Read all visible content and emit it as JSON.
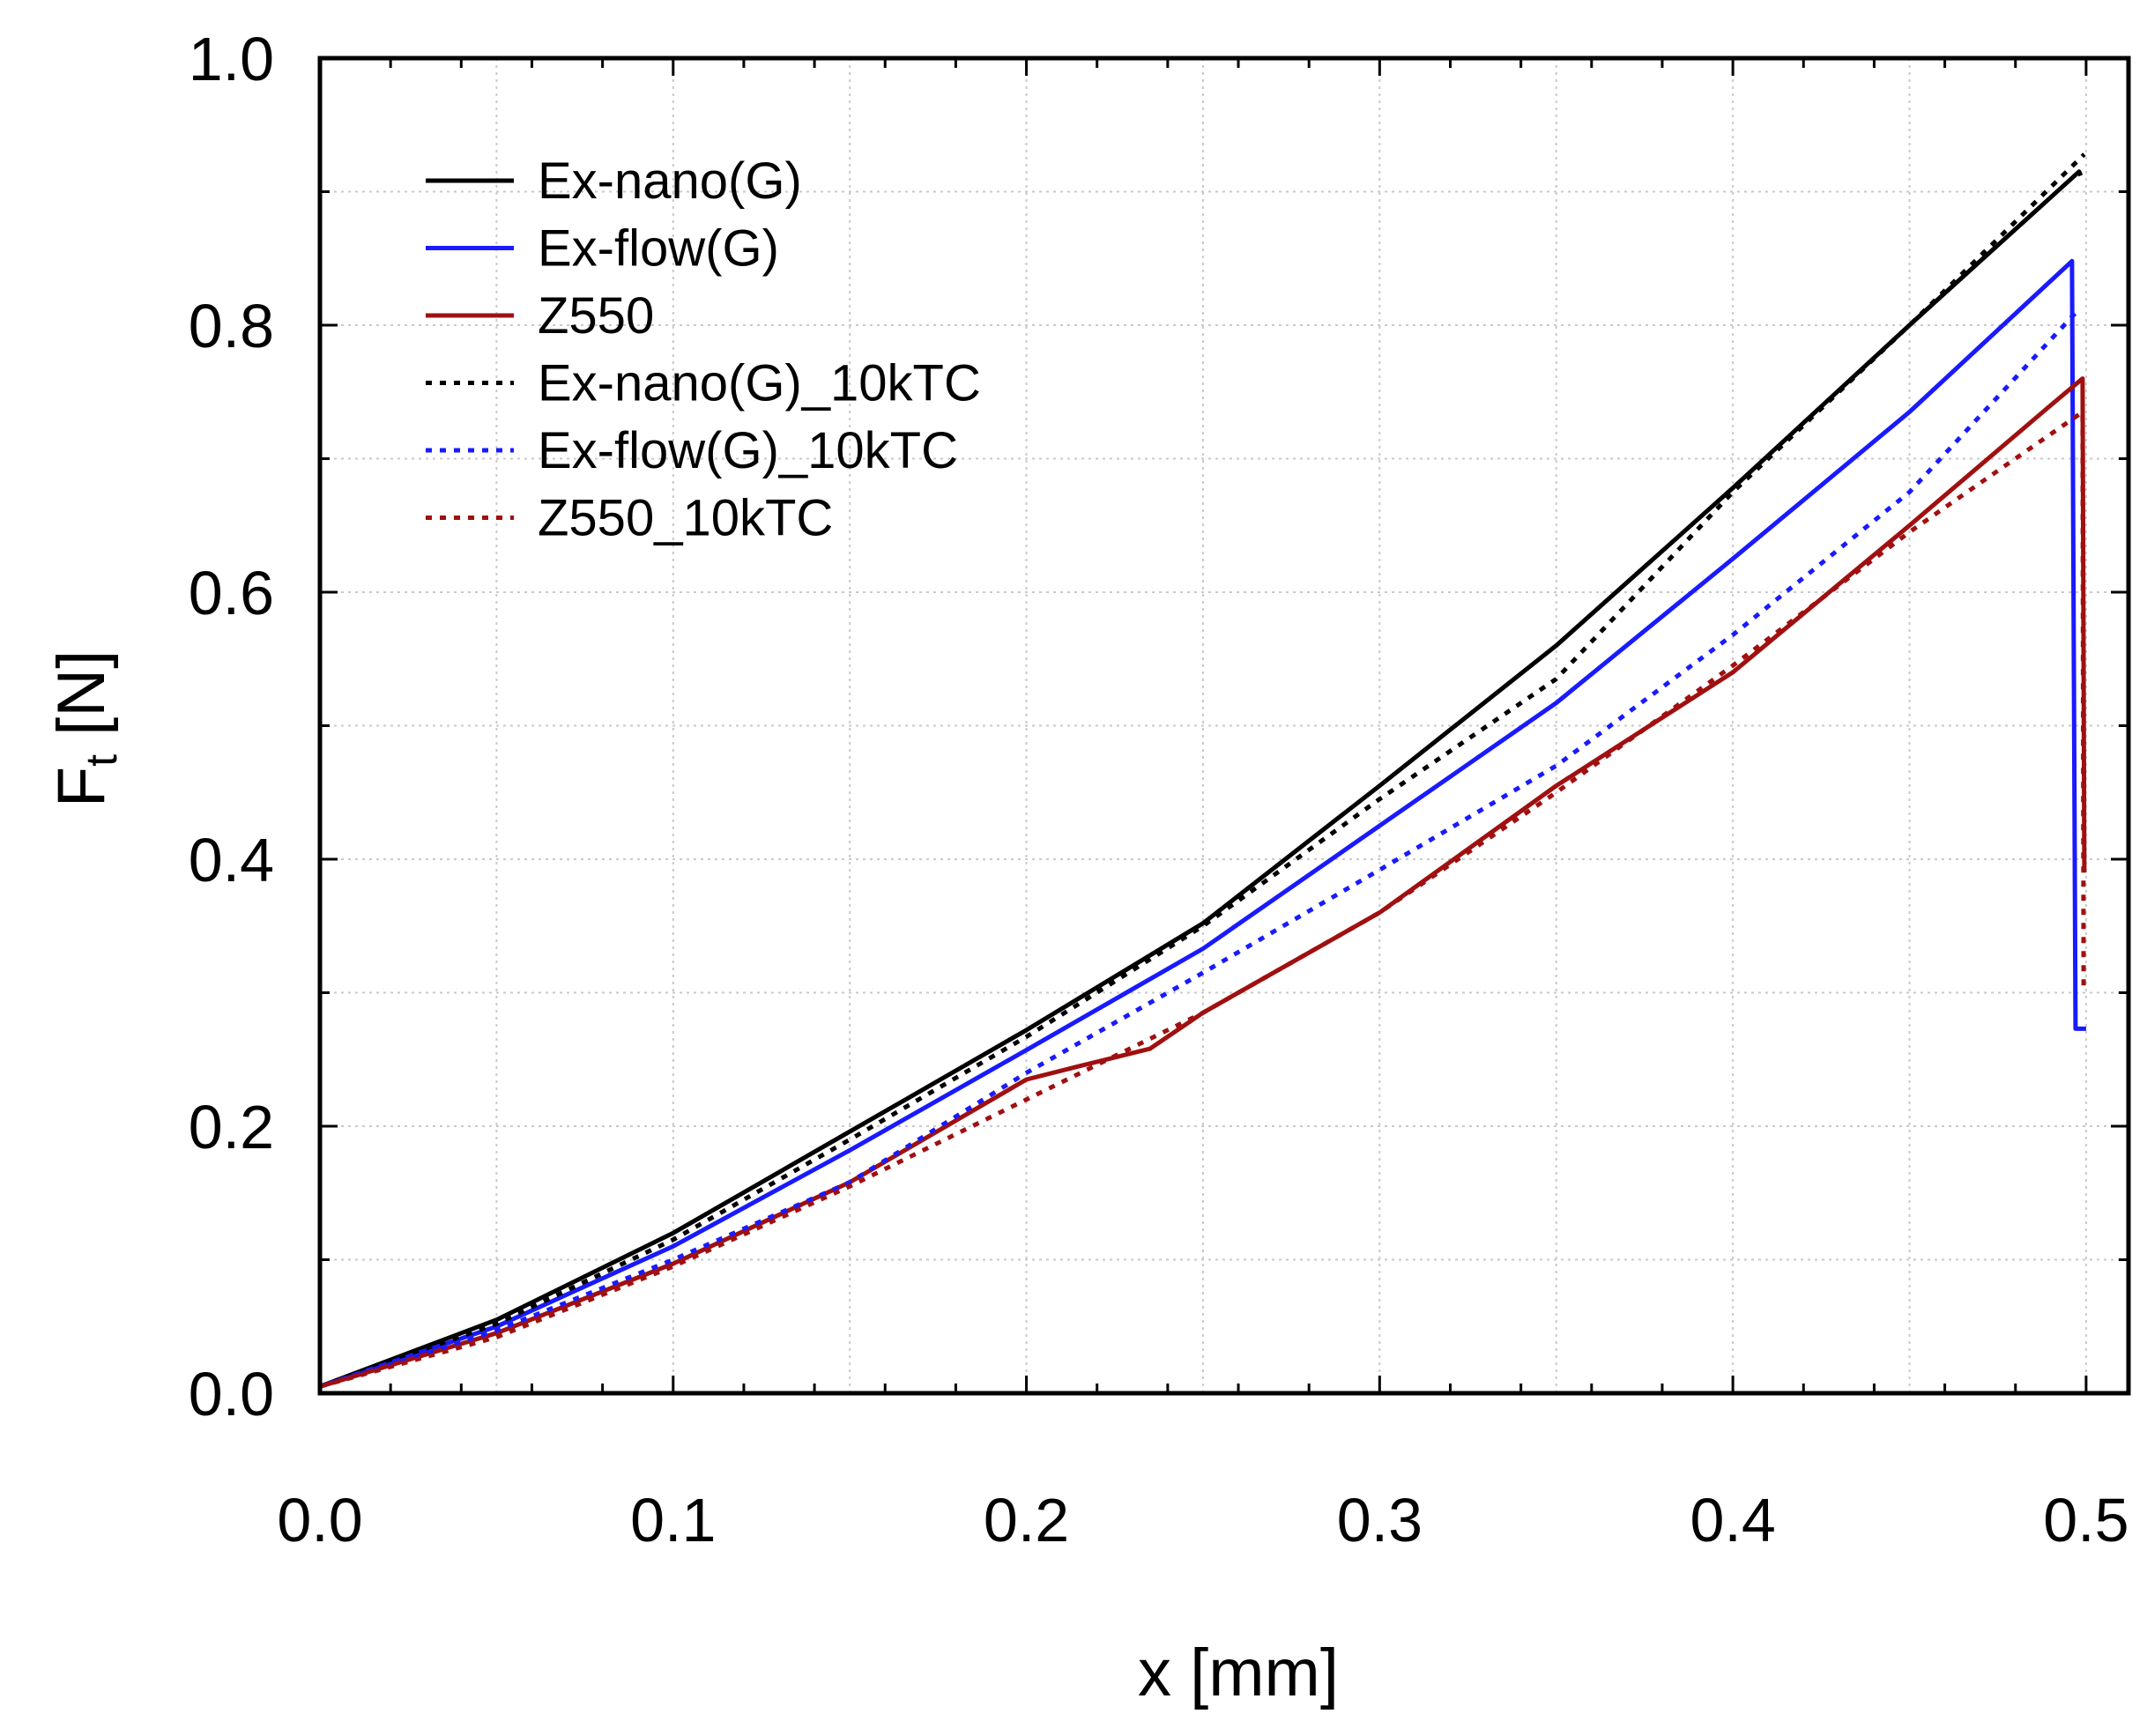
{
  "chart_data": {
    "type": "line",
    "title": "",
    "xlabel": "x [mm]",
    "ylabel_main": "F",
    "ylabel_sub": "t",
    "ylabel_unit": " [N]",
    "xlim": [
      0,
      0.512
    ],
    "ylim": [
      0,
      1.0
    ],
    "grid": true,
    "legend_position": "top-left",
    "x_ticks": [
      0.0,
      0.1,
      0.2,
      0.3,
      0.4,
      0.5
    ],
    "x_tick_labels": [
      "0.0",
      "0.1",
      "0.2",
      "0.3",
      "0.4",
      "0.5"
    ],
    "y_ticks": [
      0.0,
      0.2,
      0.4,
      0.6,
      0.8,
      1.0
    ],
    "y_tick_labels": [
      "0.0",
      "0.2",
      "0.4",
      "0.6",
      "0.8",
      "1.0"
    ],
    "series": [
      {
        "name": "Ex-nano(G)",
        "color": "#000000",
        "style": "solid",
        "points": [
          [
            0,
            0.005
          ],
          [
            0.05,
            0.055
          ],
          [
            0.1,
            0.12
          ],
          [
            0.15,
            0.196
          ],
          [
            0.2,
            0.272
          ],
          [
            0.25,
            0.352
          ],
          [
            0.3,
            0.455
          ],
          [
            0.35,
            0.56
          ],
          [
            0.4,
            0.678
          ],
          [
            0.45,
            0.8
          ],
          [
            0.498,
            0.915
          ],
          [
            0.4985,
            0.912
          ]
        ]
      },
      {
        "name": "Ex-flow(G)",
        "color": "#1a1aff",
        "style": "solid",
        "points": [
          [
            0,
            0.005
          ],
          [
            0.05,
            0.05
          ],
          [
            0.1,
            0.11
          ],
          [
            0.15,
            0.182
          ],
          [
            0.2,
            0.257
          ],
          [
            0.25,
            0.333
          ],
          [
            0.3,
            0.425
          ],
          [
            0.35,
            0.517
          ],
          [
            0.4,
            0.625
          ],
          [
            0.45,
            0.735
          ],
          [
            0.496,
            0.848
          ],
          [
            0.497,
            0.273
          ],
          [
            0.5,
            0.273
          ]
        ]
      },
      {
        "name": "Z550",
        "color": "#a01010",
        "style": "solid",
        "points": [
          [
            0,
            0.005
          ],
          [
            0.05,
            0.045
          ],
          [
            0.1,
            0.097
          ],
          [
            0.15,
            0.158
          ],
          [
            0.2,
            0.235
          ],
          [
            0.215,
            0.245
          ],
          [
            0.235,
            0.258
          ],
          [
            0.25,
            0.285
          ],
          [
            0.3,
            0.36
          ],
          [
            0.35,
            0.455
          ],
          [
            0.4,
            0.54
          ],
          [
            0.45,
            0.65
          ],
          [
            0.49,
            0.74
          ],
          [
            0.499,
            0.76
          ],
          [
            0.4995,
            0.39
          ]
        ]
      },
      {
        "name": "Ex-nano(G)_10kTC",
        "color": "#000000",
        "style": "dotted",
        "points": [
          [
            0,
            0.005
          ],
          [
            0.05,
            0.052
          ],
          [
            0.1,
            0.115
          ],
          [
            0.15,
            0.19
          ],
          [
            0.2,
            0.267
          ],
          [
            0.25,
            0.35
          ],
          [
            0.3,
            0.445
          ],
          [
            0.35,
            0.535
          ],
          [
            0.4,
            0.675
          ],
          [
            0.45,
            0.8
          ],
          [
            0.4995,
            0.928
          ]
        ]
      },
      {
        "name": "Ex-flow(G)_10kTC",
        "color": "#1a1aff",
        "style": "dotted",
        "points": [
          [
            0,
            0.005
          ],
          [
            0.05,
            0.047
          ],
          [
            0.1,
            0.1
          ],
          [
            0.15,
            0.158
          ],
          [
            0.2,
            0.24
          ],
          [
            0.25,
            0.315
          ],
          [
            0.3,
            0.392
          ],
          [
            0.35,
            0.47
          ],
          [
            0.4,
            0.568
          ],
          [
            0.45,
            0.675
          ],
          [
            0.498,
            0.812
          ]
        ]
      },
      {
        "name": "Z550_10kTC",
        "color": "#a01010",
        "style": "dotted",
        "points": [
          [
            0,
            0.005
          ],
          [
            0.05,
            0.042
          ],
          [
            0.1,
            0.095
          ],
          [
            0.15,
            0.155
          ],
          [
            0.2,
            0.22
          ],
          [
            0.25,
            0.285
          ],
          [
            0.3,
            0.36
          ],
          [
            0.35,
            0.45
          ],
          [
            0.4,
            0.545
          ],
          [
            0.45,
            0.645
          ],
          [
            0.499,
            0.735
          ],
          [
            0.4993,
            0.3
          ]
        ]
      }
    ]
  }
}
